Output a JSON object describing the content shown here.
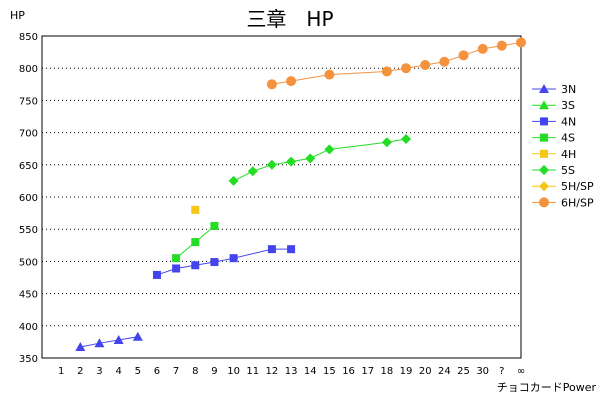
{
  "chart_data": {
    "type": "line",
    "title": "三章　HP",
    "ylabel": "HP",
    "xlabel": "チョコカードPower",
    "ylim": [
      350,
      850
    ],
    "yticks": [
      350,
      400,
      450,
      500,
      550,
      600,
      650,
      700,
      750,
      800,
      850
    ],
    "categories": [
      "1",
      "2",
      "3",
      "4",
      "5",
      "6",
      "7",
      "8",
      "9",
      "10",
      "11",
      "12",
      "13",
      "14",
      "15",
      "16",
      "17",
      "18",
      "19",
      "20",
      "24",
      "25",
      "30",
      "?",
      "∞"
    ],
    "grid": "horizontal-dotted",
    "legend_position": "right",
    "series": [
      {
        "name": "3N",
        "color": "#4444ee",
        "marker": "triangle",
        "points": [
          [
            "2",
            367
          ],
          [
            "3",
            373
          ],
          [
            "4",
            378
          ],
          [
            "5",
            383
          ]
        ]
      },
      {
        "name": "3S",
        "color": "#22dd22",
        "marker": "triangle",
        "points": []
      },
      {
        "name": "4N",
        "color": "#4444ee",
        "marker": "square",
        "points": [
          [
            "6",
            479
          ],
          [
            "7",
            489
          ],
          [
            "8",
            494
          ],
          [
            "9",
            499
          ],
          [
            "10",
            505
          ],
          [
            "12",
            519
          ],
          [
            "13",
            519
          ]
        ]
      },
      {
        "name": "4S",
        "color": "#22dd22",
        "marker": "square",
        "points": [
          [
            "7",
            505
          ],
          [
            "8",
            530
          ],
          [
            "9",
            555
          ]
        ]
      },
      {
        "name": "4H",
        "color": "#f5c518",
        "marker": "square",
        "points": [
          [
            "8",
            580
          ]
        ]
      },
      {
        "name": "5S",
        "color": "#22dd22",
        "marker": "diamond",
        "points": [
          [
            "10",
            625
          ],
          [
            "11",
            640
          ],
          [
            "12",
            650
          ],
          [
            "13",
            655
          ],
          [
            "14",
            660
          ],
          [
            "15",
            674
          ],
          [
            "18",
            685
          ],
          [
            "19",
            690
          ]
        ]
      },
      {
        "name": "5H/SP",
        "color": "#f5c518",
        "marker": "diamond",
        "points": []
      },
      {
        "name": "6H/SP",
        "color": "#f5923e",
        "marker": "circle",
        "points": [
          [
            "12",
            775
          ],
          [
            "13",
            780
          ],
          [
            "15",
            790
          ],
          [
            "18",
            795
          ],
          [
            "19",
            800
          ],
          [
            "20",
            805
          ],
          [
            "24",
            810
          ],
          [
            "25",
            820
          ],
          [
            "30",
            830
          ],
          [
            "?",
            835
          ],
          [
            "∞",
            840
          ]
        ]
      }
    ]
  }
}
